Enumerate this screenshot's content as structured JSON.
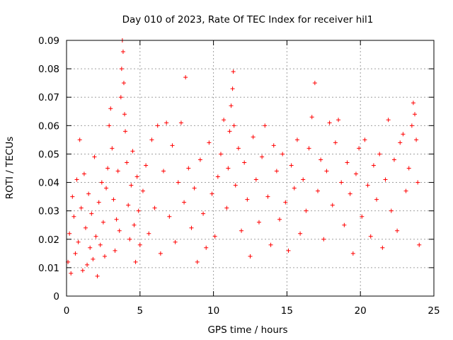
{
  "chart_data": {
    "type": "scatter",
    "title": "Day 010 of 2023, Rate Of TEC Index for receiver hil1",
    "xlabel": "GPS time / hours",
    "ylabel": "ROTI / TECUs",
    "xlim": [
      0,
      25
    ],
    "ylim": [
      0,
      0.09
    ],
    "xticks": [
      0,
      5,
      10,
      15,
      20,
      25
    ],
    "xtick_labels": [
      "0",
      "5",
      "10",
      "15",
      "20",
      "25"
    ],
    "yticks": [
      0,
      0.01,
      0.02,
      0.03,
      0.04,
      0.05,
      0.06,
      0.07,
      0.08,
      0.09
    ],
    "ytick_labels": [
      "0",
      "0.01",
      "0.02",
      "0.03",
      "0.04",
      "0.05",
      "0.06",
      "0.07",
      "0.08",
      "0.09"
    ],
    "grid": true,
    "marker": "+",
    "color": "#ff0000",
    "series": [
      {
        "name": "ROTI",
        "points": [
          [
            0.1,
            0.012
          ],
          [
            0.2,
            0.022
          ],
          [
            0.3,
            0.008
          ],
          [
            0.4,
            0.035
          ],
          [
            0.5,
            0.028
          ],
          [
            0.6,
            0.015
          ],
          [
            0.7,
            0.041
          ],
          [
            0.8,
            0.019
          ],
          [
            0.9,
            0.055
          ],
          [
            1.0,
            0.031
          ],
          [
            1.1,
            0.009
          ],
          [
            1.2,
            0.043
          ],
          [
            1.3,
            0.024
          ],
          [
            1.4,
            0.011
          ],
          [
            1.5,
            0.036
          ],
          [
            1.6,
            0.017
          ],
          [
            1.7,
            0.029
          ],
          [
            1.8,
            0.013
          ],
          [
            1.9,
            0.049
          ],
          [
            2.0,
            0.021
          ],
          [
            2.1,
            0.007
          ],
          [
            2.2,
            0.033
          ],
          [
            2.3,
            0.018
          ],
          [
            2.4,
            0.04
          ],
          [
            2.5,
            0.026
          ],
          [
            2.6,
            0.014
          ],
          [
            2.7,
            0.038
          ],
          [
            2.8,
            0.045
          ],
          [
            2.9,
            0.06
          ],
          [
            3.0,
            0.066
          ],
          [
            3.1,
            0.052
          ],
          [
            3.2,
            0.034
          ],
          [
            3.3,
            0.016
          ],
          [
            3.4,
            0.027
          ],
          [
            3.5,
            0.044
          ],
          [
            3.6,
            0.023
          ],
          [
            3.7,
            0.07
          ],
          [
            3.75,
            0.08
          ],
          [
            3.8,
            0.09
          ],
          [
            3.85,
            0.086
          ],
          [
            3.9,
            0.075
          ],
          [
            3.95,
            0.064
          ],
          [
            4.0,
            0.058
          ],
          [
            4.1,
            0.047
          ],
          [
            4.2,
            0.032
          ],
          [
            4.3,
            0.02
          ],
          [
            4.4,
            0.039
          ],
          [
            4.5,
            0.051
          ],
          [
            4.6,
            0.025
          ],
          [
            4.7,
            0.012
          ],
          [
            4.8,
            0.042
          ],
          [
            4.9,
            0.03
          ],
          [
            5.0,
            0.018
          ],
          [
            5.2,
            0.037
          ],
          [
            5.4,
            0.046
          ],
          [
            5.6,
            0.022
          ],
          [
            5.8,
            0.055
          ],
          [
            6.0,
            0.031
          ],
          [
            6.2,
            0.06
          ],
          [
            6.4,
            0.015
          ],
          [
            6.6,
            0.044
          ],
          [
            6.8,
            0.061
          ],
          [
            7.0,
            0.028
          ],
          [
            7.2,
            0.053
          ],
          [
            7.4,
            0.019
          ],
          [
            7.6,
            0.04
          ],
          [
            7.8,
            0.061
          ],
          [
            8.0,
            0.033
          ],
          [
            8.1,
            0.077
          ],
          [
            8.3,
            0.045
          ],
          [
            8.5,
            0.024
          ],
          [
            8.7,
            0.038
          ],
          [
            8.9,
            0.012
          ],
          [
            9.1,
            0.048
          ],
          [
            9.3,
            0.029
          ],
          [
            9.5,
            0.017
          ],
          [
            9.7,
            0.054
          ],
          [
            9.9,
            0.036
          ],
          [
            10.1,
            0.021
          ],
          [
            10.3,
            0.042
          ],
          [
            10.5,
            0.05
          ],
          [
            10.7,
            0.062
          ],
          [
            10.9,
            0.031
          ],
          [
            11.0,
            0.045
          ],
          [
            11.1,
            0.058
          ],
          [
            11.2,
            0.067
          ],
          [
            11.3,
            0.073
          ],
          [
            11.35,
            0.079
          ],
          [
            11.4,
            0.06
          ],
          [
            11.5,
            0.039
          ],
          [
            11.7,
            0.052
          ],
          [
            11.9,
            0.023
          ],
          [
            12.1,
            0.047
          ],
          [
            12.3,
            0.034
          ],
          [
            12.5,
            0.014
          ],
          [
            12.7,
            0.056
          ],
          [
            12.9,
            0.041
          ],
          [
            13.1,
            0.026
          ],
          [
            13.3,
            0.049
          ],
          [
            13.5,
            0.06
          ],
          [
            13.7,
            0.035
          ],
          [
            13.9,
            0.018
          ],
          [
            14.1,
            0.053
          ],
          [
            14.3,
            0.044
          ],
          [
            14.5,
            0.027
          ],
          [
            14.7,
            0.05
          ],
          [
            14.9,
            0.033
          ],
          [
            15.1,
            0.016
          ],
          [
            15.3,
            0.046
          ],
          [
            15.5,
            0.038
          ],
          [
            15.7,
            0.055
          ],
          [
            15.9,
            0.022
          ],
          [
            16.1,
            0.041
          ],
          [
            16.3,
            0.03
          ],
          [
            16.5,
            0.052
          ],
          [
            16.7,
            0.063
          ],
          [
            16.9,
            0.075
          ],
          [
            17.1,
            0.037
          ],
          [
            17.3,
            0.048
          ],
          [
            17.5,
            0.02
          ],
          [
            17.7,
            0.044
          ],
          [
            17.9,
            0.061
          ],
          [
            18.1,
            0.032
          ],
          [
            18.3,
            0.054
          ],
          [
            18.5,
            0.062
          ],
          [
            18.7,
            0.04
          ],
          [
            18.9,
            0.025
          ],
          [
            19.1,
            0.047
          ],
          [
            19.3,
            0.036
          ],
          [
            19.5,
            0.015
          ],
          [
            19.7,
            0.043
          ],
          [
            19.9,
            0.052
          ],
          [
            20.1,
            0.028
          ],
          [
            20.3,
            0.055
          ],
          [
            20.5,
            0.039
          ],
          [
            20.7,
            0.021
          ],
          [
            20.9,
            0.046
          ],
          [
            21.1,
            0.034
          ],
          [
            21.3,
            0.05
          ],
          [
            21.5,
            0.017
          ],
          [
            21.7,
            0.041
          ],
          [
            21.9,
            0.062
          ],
          [
            22.1,
            0.03
          ],
          [
            22.3,
            0.048
          ],
          [
            22.5,
            0.023
          ],
          [
            22.7,
            0.054
          ],
          [
            22.9,
            0.057
          ],
          [
            23.1,
            0.037
          ],
          [
            23.3,
            0.045
          ],
          [
            23.5,
            0.06
          ],
          [
            23.6,
            0.068
          ],
          [
            23.7,
            0.064
          ],
          [
            23.8,
            0.055
          ],
          [
            23.9,
            0.04
          ],
          [
            24.0,
            0.018
          ]
        ]
      }
    ]
  }
}
